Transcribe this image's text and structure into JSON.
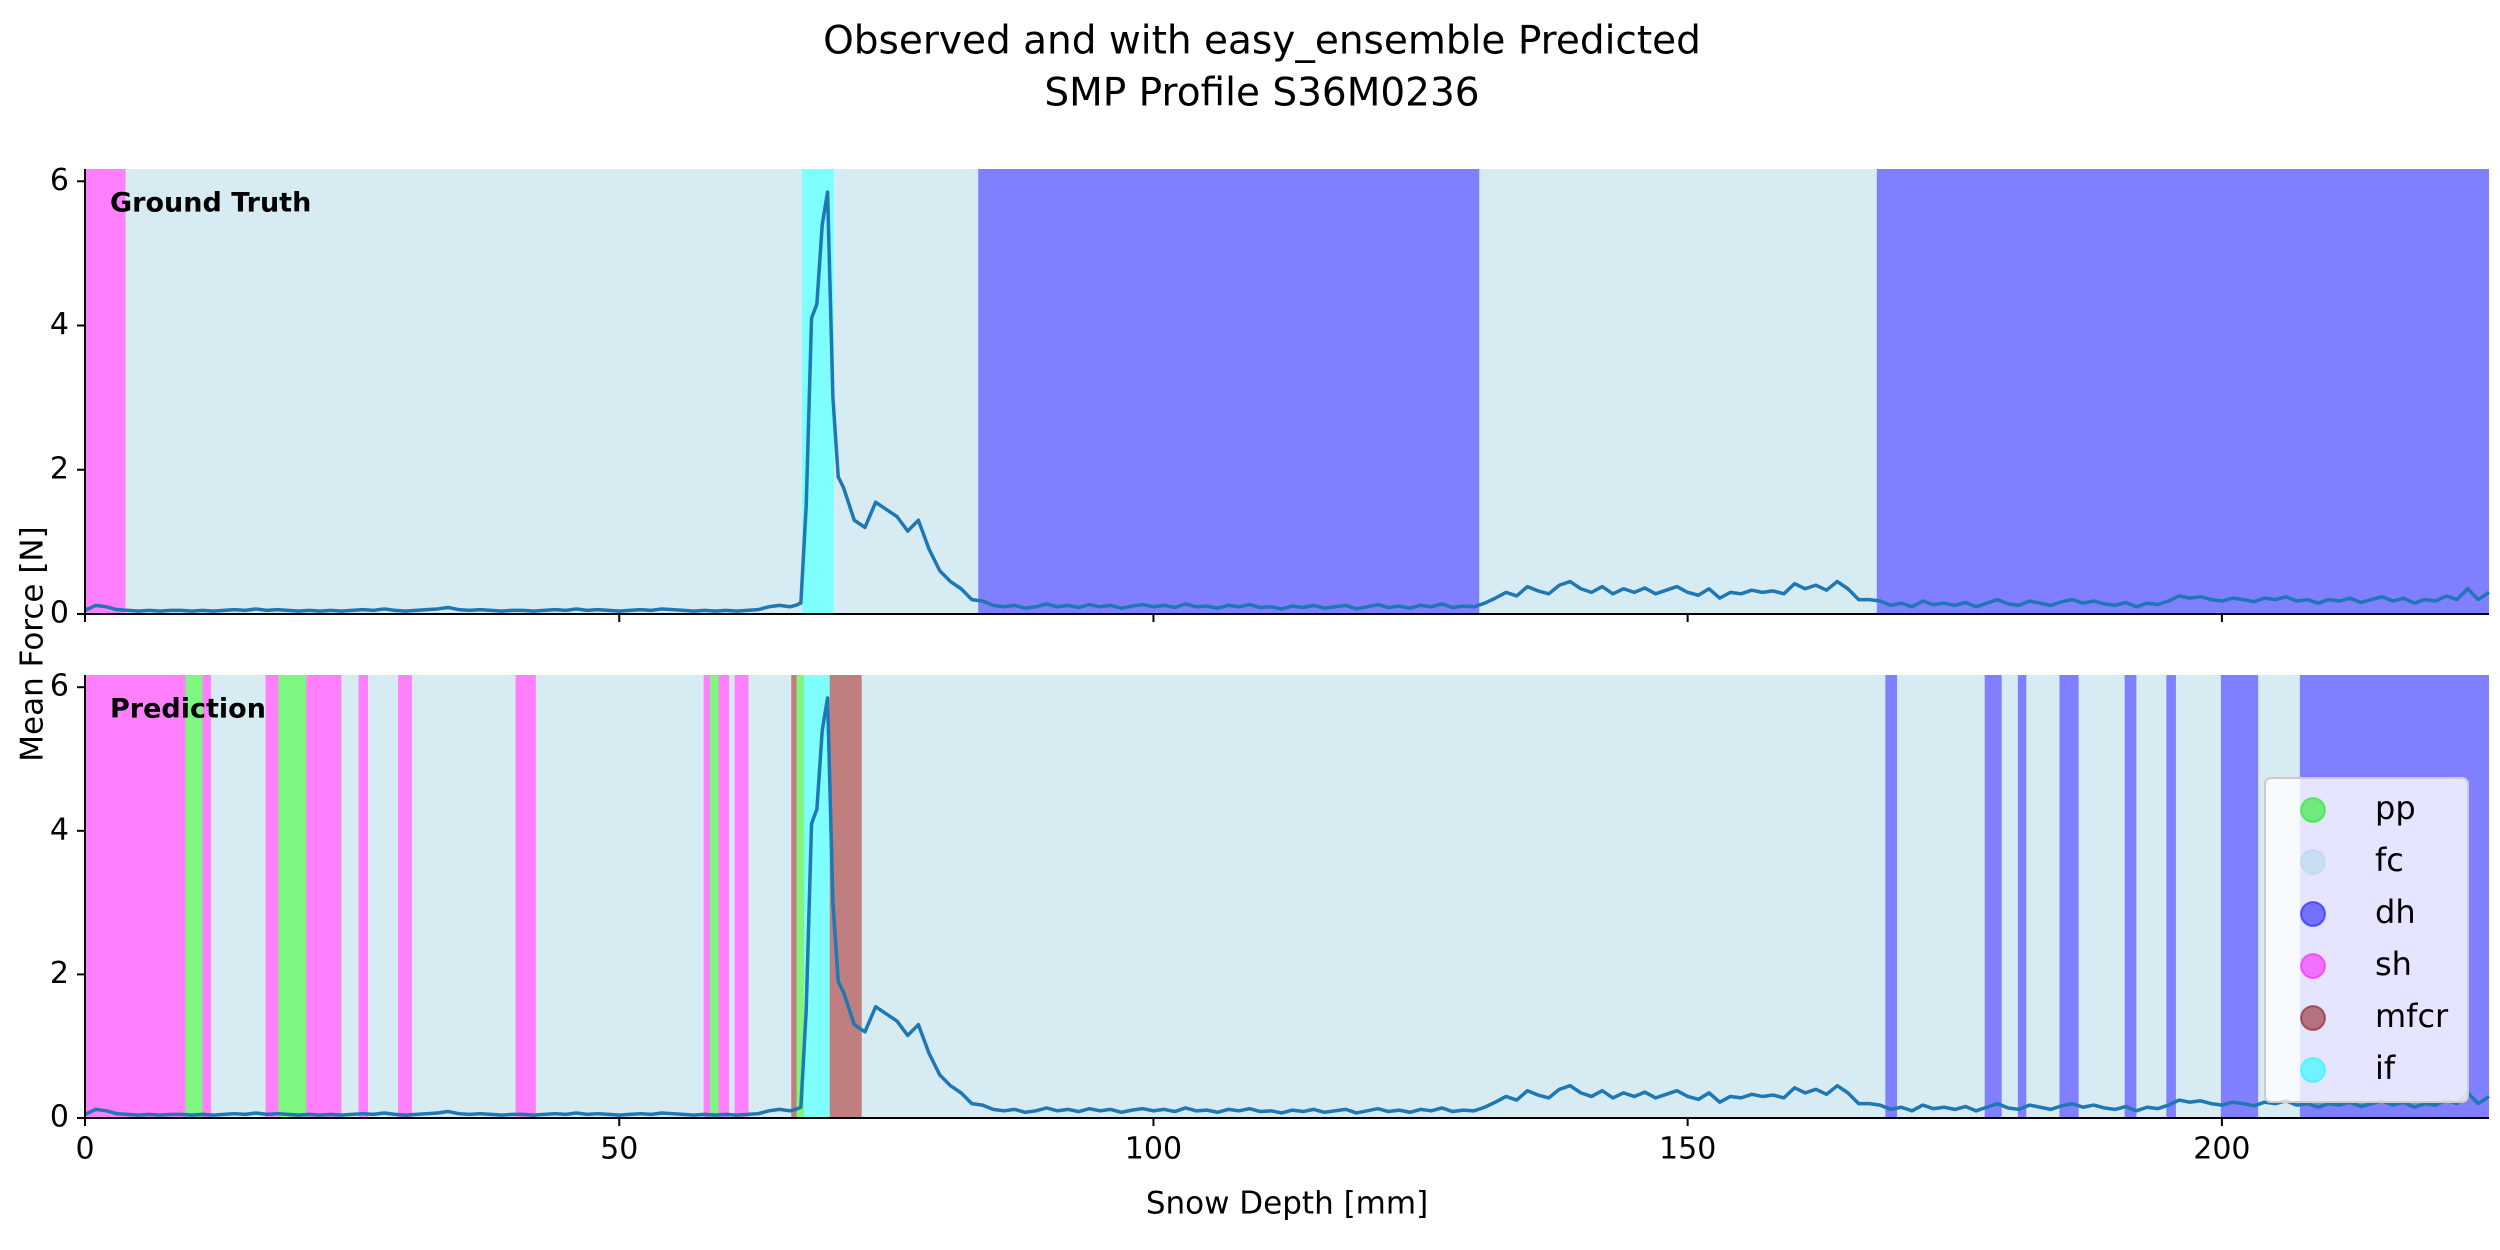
{
  "chart_data": {
    "type": "line",
    "title": [
      "Observed and with easy_ensemble Predicted",
      "SMP Profile S36M0236"
    ],
    "x_label": "Snow Depth [mm]",
    "y_label": "Mean Force [N]",
    "xlim": [
      0,
      225
    ],
    "xticks": [
      0,
      50,
      100,
      150,
      200
    ],
    "ylim": [
      0,
      6.17
    ],
    "yticks": [
      0,
      2,
      4,
      6
    ],
    "color": "#1f77b4",
    "x": [
      0,
      1,
      2,
      3,
      4,
      5,
      6,
      7,
      8,
      9,
      10,
      11,
      12,
      13,
      14,
      15,
      16,
      17,
      18,
      19,
      20,
      21,
      22,
      23,
      24,
      25,
      26,
      27,
      28,
      29,
      30,
      31,
      32,
      33,
      34,
      35,
      36,
      37,
      38,
      39,
      40,
      41,
      42,
      43,
      44,
      45,
      46,
      47,
      48,
      49,
      50,
      51,
      52,
      53,
      54,
      55,
      56,
      57,
      58,
      59,
      60,
      61,
      62,
      63,
      64,
      65,
      66,
      66.5,
      67,
      67.5,
      68,
      68.5,
      69,
      69.5,
      70,
      70.5,
      71,
      72,
      73,
      74,
      75,
      76,
      77,
      78,
      79,
      80,
      81,
      82,
      83,
      84,
      85,
      86,
      87,
      88,
      89,
      90,
      91,
      92,
      93,
      94,
      95,
      96,
      97,
      98,
      99,
      100,
      101,
      102,
      103,
      104,
      105,
      106,
      107,
      108,
      109,
      110,
      111,
      112,
      113,
      114,
      115,
      116,
      117,
      118,
      119,
      120,
      121,
      122,
      123,
      124,
      125,
      126,
      127,
      128,
      129,
      130,
      131,
      132,
      133,
      134,
      135,
      136,
      137,
      138,
      139,
      140,
      141,
      142,
      143,
      144,
      145,
      146,
      147,
      148,
      149,
      150,
      151,
      152,
      153,
      154,
      155,
      156,
      157,
      158,
      159,
      160,
      161,
      162,
      163,
      164,
      165,
      166,
      167,
      168,
      169,
      170,
      171,
      172,
      173,
      174,
      175,
      176,
      177,
      178,
      179,
      180,
      181,
      182,
      183,
      184,
      185,
      186,
      187,
      188,
      189,
      190,
      191,
      192,
      193,
      194,
      195,
      196,
      197,
      198,
      199,
      200,
      201,
      202,
      203,
      204,
      205,
      206,
      207,
      208,
      209,
      210,
      211,
      212,
      213,
      214,
      215,
      216,
      217,
      218,
      219,
      220,
      221,
      222,
      223,
      224,
      225
    ],
    "values": [
      0.05,
      0.12,
      0.1,
      0.06,
      0.05,
      0.04,
      0.05,
      0.04,
      0.05,
      0.05,
      0.04,
      0.05,
      0.04,
      0.05,
      0.06,
      0.05,
      0.07,
      0.05,
      0.06,
      0.05,
      0.04,
      0.05,
      0.04,
      0.05,
      0.04,
      0.05,
      0.06,
      0.05,
      0.07,
      0.05,
      0.04,
      0.05,
      0.06,
      0.07,
      0.09,
      0.06,
      0.05,
      0.06,
      0.05,
      0.04,
      0.05,
      0.05,
      0.04,
      0.05,
      0.06,
      0.05,
      0.07,
      0.05,
      0.06,
      0.05,
      0.04,
      0.05,
      0.06,
      0.05,
      0.07,
      0.06,
      0.05,
      0.04,
      0.05,
      0.04,
      0.05,
      0.04,
      0.05,
      0.06,
      0.1,
      0.12,
      0.1,
      0.12,
      0.15,
      1.5,
      4.1,
      4.3,
      5.4,
      5.85,
      3.0,
      1.9,
      1.75,
      1.3,
      1.2,
      1.55,
      1.45,
      1.35,
      1.15,
      1.3,
      0.9,
      0.6,
      0.45,
      0.35,
      0.2,
      0.18,
      0.12,
      0.1,
      0.12,
      0.08,
      0.1,
      0.14,
      0.1,
      0.12,
      0.09,
      0.13,
      0.1,
      0.12,
      0.08,
      0.11,
      0.13,
      0.1,
      0.12,
      0.09,
      0.14,
      0.1,
      0.11,
      0.08,
      0.12,
      0.1,
      0.13,
      0.09,
      0.1,
      0.07,
      0.11,
      0.09,
      0.12,
      0.08,
      0.1,
      0.12,
      0.07,
      0.1,
      0.13,
      0.09,
      0.11,
      0.08,
      0.12,
      0.1,
      0.14,
      0.09,
      0.11,
      0.1,
      0.15,
      0.22,
      0.3,
      0.25,
      0.38,
      0.32,
      0.28,
      0.4,
      0.45,
      0.35,
      0.3,
      0.38,
      0.28,
      0.35,
      0.3,
      0.36,
      0.28,
      0.33,
      0.38,
      0.3,
      0.26,
      0.35,
      0.22,
      0.3,
      0.28,
      0.33,
      0.3,
      0.32,
      0.28,
      0.42,
      0.35,
      0.4,
      0.33,
      0.45,
      0.35,
      0.2,
      0.2,
      0.18,
      0.12,
      0.15,
      0.1,
      0.18,
      0.13,
      0.15,
      0.12,
      0.16,
      0.1,
      0.15,
      0.2,
      0.14,
      0.12,
      0.18,
      0.15,
      0.12,
      0.17,
      0.2,
      0.15,
      0.18,
      0.14,
      0.12,
      0.16,
      0.1,
      0.15,
      0.13,
      0.18,
      0.25,
      0.22,
      0.24,
      0.2,
      0.18,
      0.22,
      0.2,
      0.17,
      0.22,
      0.2,
      0.24,
      0.18,
      0.2,
      0.15,
      0.2,
      0.18,
      0.22,
      0.16,
      0.2,
      0.24,
      0.18,
      0.22,
      0.15,
      0.2,
      0.18,
      0.25,
      0.2,
      0.35,
      0.2,
      0.3
    ],
    "classes": [
      {
        "name": "pp",
        "color": "#00ee00",
        "alpha": 0.5
      },
      {
        "name": "fc",
        "color": "#add8e6",
        "alpha": 0.5
      },
      {
        "name": "dh",
        "color": "#0000ff",
        "alpha": 0.5
      },
      {
        "name": "sh",
        "color": "#ff00ff",
        "alpha": 0.5
      },
      {
        "name": "mfcr",
        "color": "#800000",
        "alpha": 0.5
      },
      {
        "name": "if",
        "color": "#00ffff",
        "alpha": 0.5
      }
    ],
    "panels": [
      {
        "label": "Ground Truth",
        "spans": [
          {
            "start": 0,
            "end": 3.8,
            "class": "sh"
          },
          {
            "start": 3.8,
            "end": 67.1,
            "class": "fc"
          },
          {
            "start": 67.1,
            "end": 70.1,
            "class": "if"
          },
          {
            "start": 70.1,
            "end": 83.6,
            "class": "fc"
          },
          {
            "start": 83.6,
            "end": 130.5,
            "class": "dh"
          },
          {
            "start": 130.5,
            "end": 167.7,
            "class": "fc"
          },
          {
            "start": 167.7,
            "end": 225,
            "class": "dh"
          }
        ]
      },
      {
        "label": "Prediction",
        "legend": "lower right",
        "spans": [
          {
            "start": 0,
            "end": 9.4,
            "class": "sh"
          },
          {
            "start": 9.4,
            "end": 11,
            "class": "pp"
          },
          {
            "start": 11,
            "end": 11.8,
            "class": "sh"
          },
          {
            "start": 11.8,
            "end": 16.9,
            "class": "fc"
          },
          {
            "start": 16.9,
            "end": 18.1,
            "class": "sh"
          },
          {
            "start": 18.1,
            "end": 20.7,
            "class": "pp"
          },
          {
            "start": 20.7,
            "end": 24,
            "class": "sh"
          },
          {
            "start": 24,
            "end": 25.6,
            "class": "fc"
          },
          {
            "start": 25.6,
            "end": 26.5,
            "class": "sh"
          },
          {
            "start": 26.5,
            "end": 29.3,
            "class": "fc"
          },
          {
            "start": 29.3,
            "end": 30.6,
            "class": "sh"
          },
          {
            "start": 30.6,
            "end": 40.3,
            "class": "fc"
          },
          {
            "start": 40.3,
            "end": 42.2,
            "class": "sh"
          },
          {
            "start": 42.2,
            "end": 57.9,
            "class": "fc"
          },
          {
            "start": 57.9,
            "end": 58.5,
            "class": "sh"
          },
          {
            "start": 58.5,
            "end": 59.3,
            "class": "pp"
          },
          {
            "start": 59.3,
            "end": 60.3,
            "class": "sh"
          },
          {
            "start": 60.3,
            "end": 60.8,
            "class": "fc"
          },
          {
            "start": 60.8,
            "end": 62.1,
            "class": "sh"
          },
          {
            "start": 62.1,
            "end": 66.1,
            "class": "fc"
          },
          {
            "start": 66.1,
            "end": 66.6,
            "class": "mfcr"
          },
          {
            "start": 66.6,
            "end": 67.3,
            "class": "pp"
          },
          {
            "start": 67.3,
            "end": 69.7,
            "class": "if"
          },
          {
            "start": 69.7,
            "end": 72.7,
            "class": "mfcr"
          },
          {
            "start": 72.7,
            "end": 168.5,
            "class": "fc"
          },
          {
            "start": 168.5,
            "end": 169.6,
            "class": "dh"
          },
          {
            "start": 169.6,
            "end": 177.8,
            "class": "fc"
          },
          {
            "start": 177.8,
            "end": 179.4,
            "class": "dh"
          },
          {
            "start": 179.4,
            "end": 180.9,
            "class": "fc"
          },
          {
            "start": 180.9,
            "end": 181.7,
            "class": "dh"
          },
          {
            "start": 181.7,
            "end": 184.8,
            "class": "fc"
          },
          {
            "start": 184.8,
            "end": 186.6,
            "class": "dh"
          },
          {
            "start": 186.6,
            "end": 190.9,
            "class": "fc"
          },
          {
            "start": 190.9,
            "end": 192,
            "class": "dh"
          },
          {
            "start": 192,
            "end": 194.8,
            "class": "fc"
          },
          {
            "start": 194.8,
            "end": 195.7,
            "class": "dh"
          },
          {
            "start": 195.7,
            "end": 199.9,
            "class": "fc"
          },
          {
            "start": 199.9,
            "end": 203.4,
            "class": "dh"
          },
          {
            "start": 203.4,
            "end": 207.3,
            "class": "fc"
          },
          {
            "start": 207.3,
            "end": 225,
            "class": "dh"
          }
        ]
      }
    ]
  }
}
